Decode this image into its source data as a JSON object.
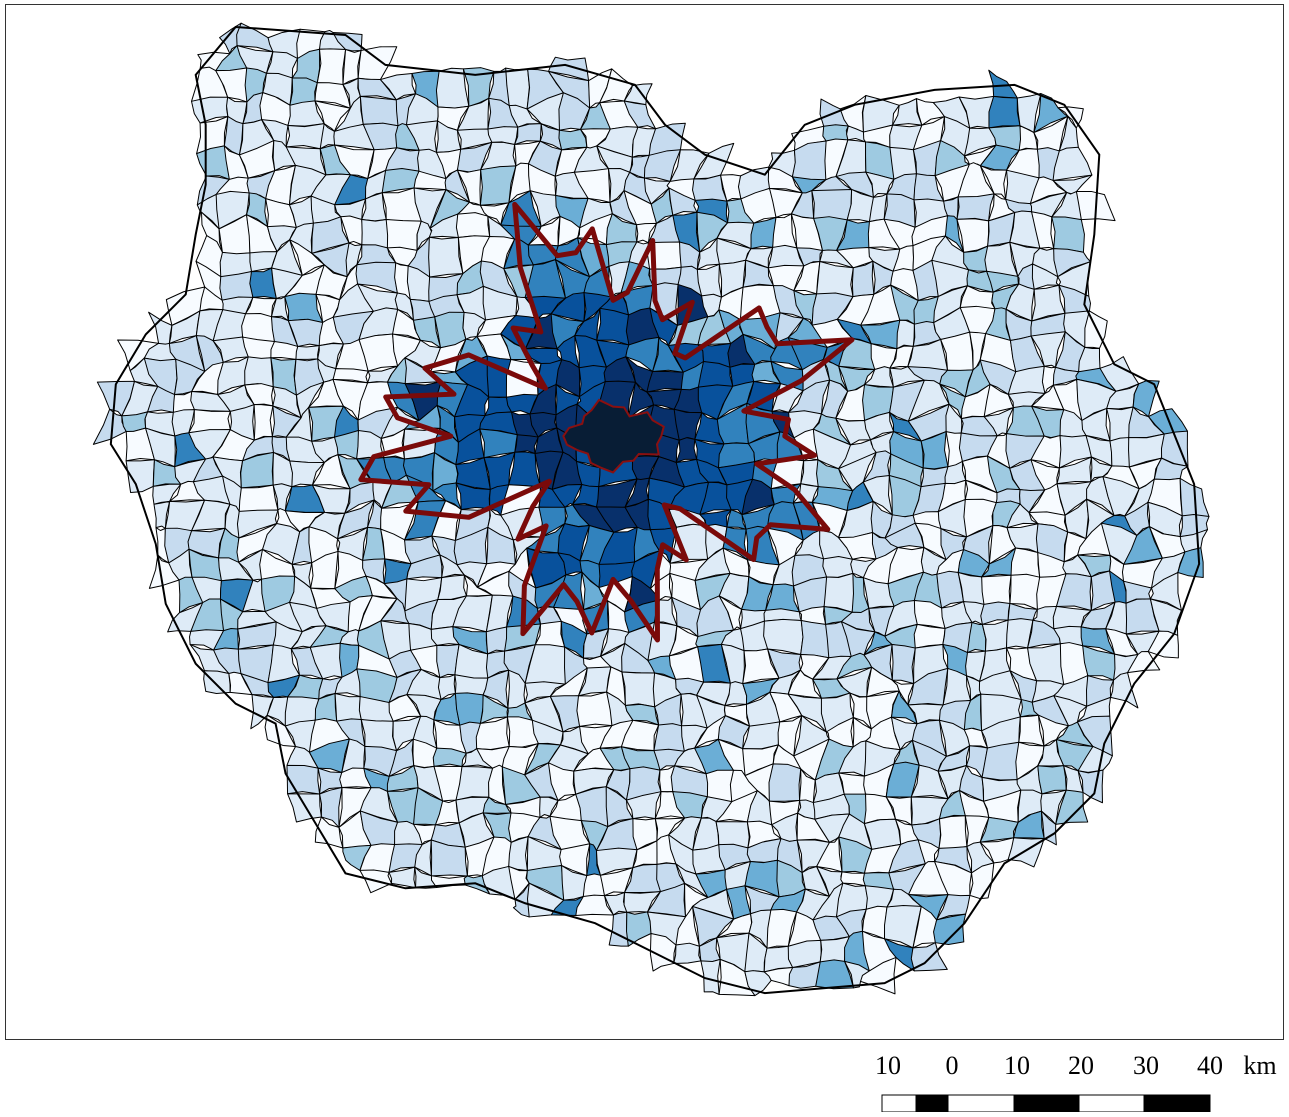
{
  "map": {
    "palette": [
      "#f7fbff",
      "#deebf7",
      "#c6dbef",
      "#9ecae1",
      "#6baed6",
      "#3182bd",
      "#08519c",
      "#08306b",
      "#081d35"
    ],
    "outline_color": "#000000",
    "boundary_color": "#7a0a0a",
    "background": "#ffffff",
    "layers": [
      "municipality-polygons",
      "urban-area-boundary",
      "central-city"
    ]
  },
  "scale_bar": {
    "labels": [
      "10",
      "0",
      "10",
      "20",
      "30",
      "40"
    ],
    "unit": "km",
    "segment_fill": [
      "#ffffff",
      "#000000",
      "#ffffff",
      "#000000",
      "#ffffff",
      "#000000"
    ]
  }
}
